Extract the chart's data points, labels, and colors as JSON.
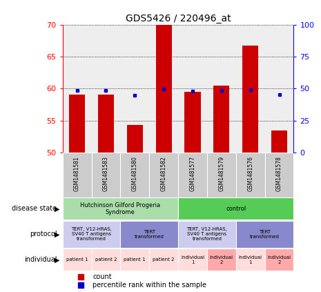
{
  "title": "GDS5426 / 220496_at",
  "samples": [
    "GSM1481581",
    "GSM1481583",
    "GSM1481580",
    "GSM1481582",
    "GSM1481577",
    "GSM1481579",
    "GSM1481576",
    "GSM1481578"
  ],
  "counts": [
    59.1,
    59.1,
    54.3,
    70.0,
    59.5,
    60.5,
    66.8,
    53.5
  ],
  "percentile_ranks": [
    48.5,
    48.5,
    45.0,
    49.5,
    48.0,
    48.5,
    49.0,
    45.5
  ],
  "ylim_left": [
    50,
    70
  ],
  "ylim_right": [
    0,
    100
  ],
  "yticks_left": [
    50,
    55,
    60,
    65,
    70
  ],
  "yticks_right": [
    0,
    25,
    50,
    75,
    100
  ],
  "bar_color": "#cc0000",
  "dot_color": "#0000cc",
  "disease_state_groups": [
    {
      "label": "Hutchinson Gilford Progeria\nSyndrome",
      "start": 0,
      "end": 4,
      "color": "#aaddaa"
    },
    {
      "label": "control",
      "start": 4,
      "end": 8,
      "color": "#55cc55"
    }
  ],
  "protocol_groups": [
    {
      "label": "TERT, V12-HRAS,\nSV40 T antigens\ntransformed",
      "start": 0,
      "end": 2,
      "color": "#ccccee"
    },
    {
      "label": "TERT\ntransformed",
      "start": 2,
      "end": 4,
      "color": "#8888cc"
    },
    {
      "label": "TERT, V12-HRAS,\nSV40 T antigens\ntransformed",
      "start": 4,
      "end": 6,
      "color": "#ccccee"
    },
    {
      "label": "TERT\ntransformed",
      "start": 6,
      "end": 8,
      "color": "#8888cc"
    }
  ],
  "individual_groups": [
    {
      "label": "patient 1",
      "start": 0,
      "end": 1,
      "color": "#ffdddd"
    },
    {
      "label": "patient 2",
      "start": 1,
      "end": 2,
      "color": "#ffdddd"
    },
    {
      "label": "patient 1",
      "start": 2,
      "end": 3,
      "color": "#ffdddd"
    },
    {
      "label": "patient 2",
      "start": 3,
      "end": 4,
      "color": "#ffdddd"
    },
    {
      "label": "individual\n1",
      "start": 4,
      "end": 5,
      "color": "#ffdddd"
    },
    {
      "label": "individual\n2",
      "start": 5,
      "end": 6,
      "color": "#ffaaaa"
    },
    {
      "label": "individual\n1",
      "start": 6,
      "end": 7,
      "color": "#ffdddd"
    },
    {
      "label": "individual\n2",
      "start": 7,
      "end": 8,
      "color": "#ffaaaa"
    }
  ],
  "row_labels": [
    "disease state",
    "protocol",
    "individual"
  ],
  "sample_bg_color": "#cccccc",
  "background_color": "#ffffff",
  "plot_bg_color": "#eeeeee"
}
